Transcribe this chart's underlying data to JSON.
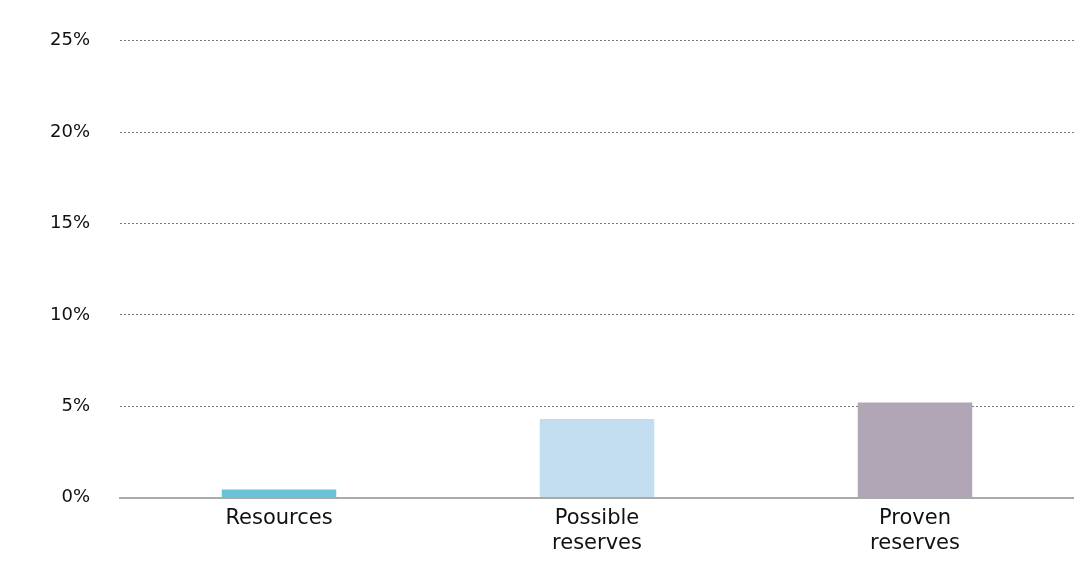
{
  "chart_data": {
    "type": "bar",
    "categories": [
      "Resources",
      "Possible reserves",
      "Proven reserves"
    ],
    "values": [
      0.45,
      4.3,
      5.2
    ],
    "colors": [
      "#6cc3d9",
      "#c2dcf0",
      "#b1a6b6"
    ],
    "ylim": [
      0,
      25
    ],
    "yticks": [
      {
        "value": 0,
        "label": "0%"
      },
      {
        "value": 5,
        "label": "5%"
      },
      {
        "value": 10,
        "label": "10%"
      },
      {
        "value": 15,
        "label": "15%"
      },
      {
        "value": 20,
        "label": "20%"
      },
      {
        "value": 25,
        "label": "25%"
      }
    ],
    "grid": "y",
    "legend": false
  }
}
